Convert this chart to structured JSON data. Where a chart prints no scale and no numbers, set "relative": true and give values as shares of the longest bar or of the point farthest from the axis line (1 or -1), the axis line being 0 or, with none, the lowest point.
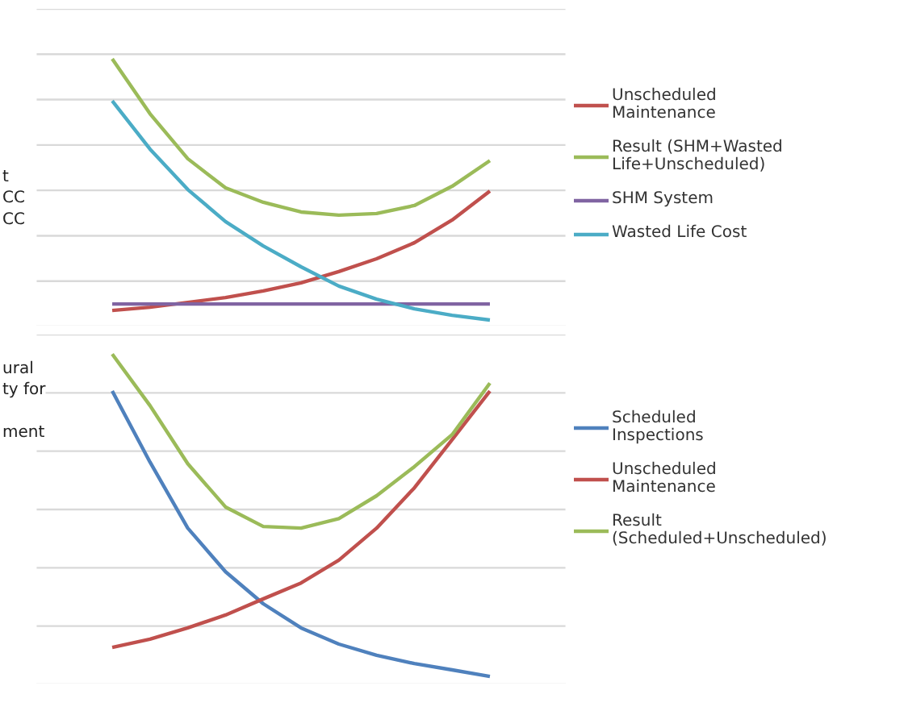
{
  "chart_data": [
    {
      "type": "line",
      "relative": true,
      "ylabel": "t\nCC\nCC",
      "grid": "y",
      "legend": "right",
      "marker": "none",
      "line_style": "solid",
      "categories": [
        null,
        null,
        null,
        null,
        null,
        null,
        null,
        null,
        null,
        null,
        null
      ],
      "series": [
        {
          "name": "Unscheduled Maintenance",
          "color": "#c0504d",
          "values": [
            0.06,
            0.072,
            0.09,
            0.108,
            0.133,
            0.163,
            0.205,
            0.253,
            0.313,
            0.398,
            0.506
          ]
        },
        {
          "name": "Result (SHM+Wasted Life+Unscheduled)",
          "color": "#9bbb59",
          "values": [
            1.0,
            0.795,
            0.627,
            0.518,
            0.464,
            0.428,
            0.416,
            0.422,
            0.452,
            0.524,
            0.62
          ]
        },
        {
          "name": "SHM System",
          "color": "#8064a2",
          "values": [
            0.084,
            0.084,
            0.084,
            0.084,
            0.084,
            0.084,
            0.084,
            0.084,
            0.084,
            0.084,
            0.084
          ]
        },
        {
          "name": "Wasted Life Cost",
          "color": "#4bacc6",
          "values": [
            0.843,
            0.663,
            0.512,
            0.392,
            0.301,
            0.223,
            0.151,
            0.102,
            0.066,
            0.042,
            0.024
          ]
        }
      ]
    },
    {
      "type": "line",
      "relative": true,
      "ylabel": "ural\nty for\n\nment",
      "grid": "y",
      "legend": "right",
      "marker": "none",
      "line_style": "solid",
      "categories": [
        null,
        null,
        null,
        null,
        null,
        null,
        null,
        null,
        null,
        null,
        null
      ],
      "series": [
        {
          "name": "Scheduled Inspections",
          "color": "#4f81bd",
          "values": [
            0.888,
            0.673,
            0.473,
            0.341,
            0.244,
            0.171,
            0.122,
            0.088,
            0.063,
            0.044,
            0.024
          ]
        },
        {
          "name": "Unscheduled Maintenance",
          "color": "#c0504d",
          "values": [
            0.112,
            0.137,
            0.171,
            0.21,
            0.259,
            0.307,
            0.376,
            0.473,
            0.595,
            0.741,
            0.888
          ]
        },
        {
          "name": "Result (Scheduled+Unscheduled)",
          "color": "#9bbb59",
          "values": [
            1.0,
            0.844,
            0.668,
            0.537,
            0.478,
            0.473,
            0.502,
            0.571,
            0.659,
            0.756,
            0.912
          ]
        }
      ]
    }
  ]
}
